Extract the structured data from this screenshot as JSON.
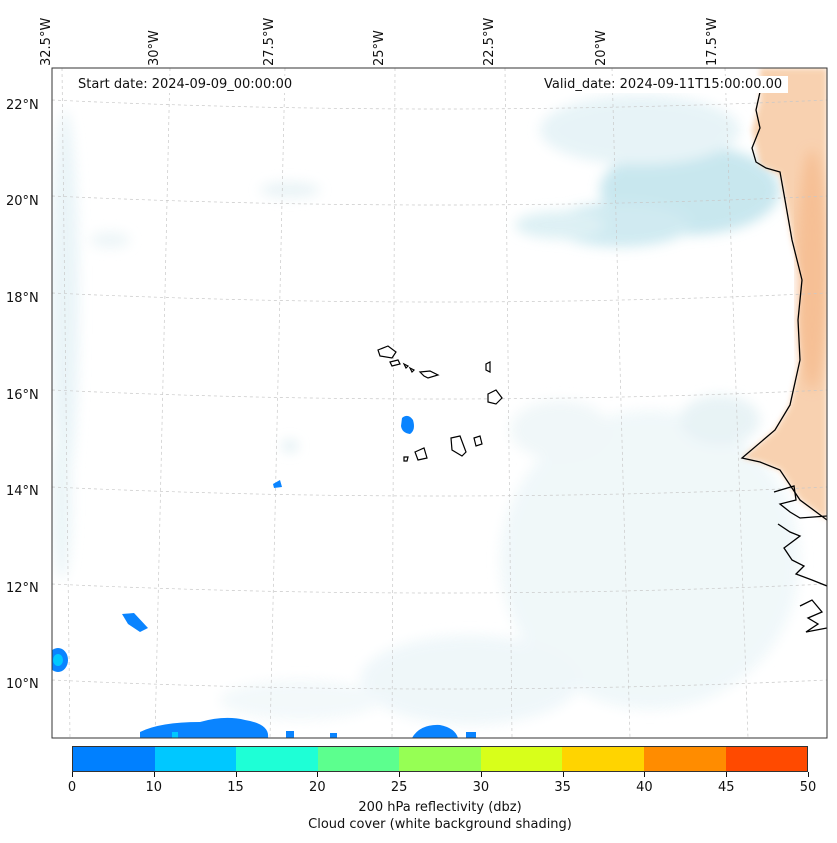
{
  "map": {
    "start_date": "Start date: 2024-09-09_00:00:00",
    "valid_date": "Valid_date: 2024-09-11T15:00:00.00",
    "lon_labels": [
      "32.5°W",
      "30°W",
      "27.5°W",
      "25°W",
      "22.5°W",
      "20°W",
      "17.5°W"
    ],
    "lat_labels": [
      "22°N",
      "20°N",
      "18°N",
      "16°N",
      "14°N",
      "12°N",
      "10°N"
    ],
    "colors": {
      "coast": "#000000",
      "grid": "#c8c8c8",
      "cloud_blue": "#bfe3ec",
      "land_orange": "#f8cda8",
      "refl_blue": "#0a84ff"
    }
  },
  "colorbar": {
    "title_line1": "200 hPa reflectivity (dbz)",
    "title_line2": "Cloud cover (white background shading)",
    "tick_labels": [
      "0",
      "10",
      "15",
      "20",
      "25",
      "30",
      "35",
      "40",
      "45",
      "50"
    ],
    "colors": [
      "#0080ff",
      "#00c8ff",
      "#1effd6",
      "#5cff8e",
      "#96ff54",
      "#d8ff1a",
      "#ffd400",
      "#ff8c00",
      "#ff4a00"
    ]
  }
}
